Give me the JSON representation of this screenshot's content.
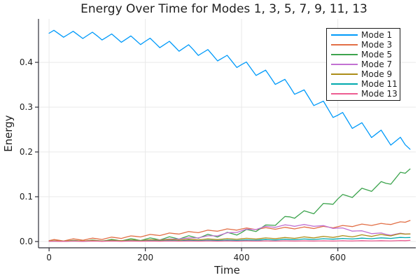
{
  "chart_data": {
    "type": "line",
    "title": "Energy Over Time for Modes 1, 3, 5, 7, 9, 11, 13",
    "xlabel": "Time",
    "ylabel": "Energy",
    "xlim": [
      -22,
      762
    ],
    "ylim": [
      -0.014,
      0.497
    ],
    "xticks": [
      0,
      200,
      400,
      600
    ],
    "yticks": [
      0.0,
      0.1,
      0.2,
      0.3,
      0.4
    ],
    "grid": true,
    "legend_position": "top-right-inside",
    "colors": {
      "grid": "#e9e9e9",
      "axis": "#2f2f38",
      "text": "#1f1f1f",
      "background": "#ffffff"
    },
    "x": [
      0,
      10,
      20,
      30,
      40,
      50,
      60,
      70,
      80,
      90,
      100,
      110,
      120,
      130,
      140,
      150,
      160,
      170,
      180,
      190,
      200,
      210,
      220,
      230,
      240,
      250,
      260,
      270,
      280,
      290,
      300,
      310,
      320,
      330,
      340,
      350,
      360,
      370,
      380,
      390,
      400,
      410,
      420,
      430,
      440,
      450,
      460,
      470,
      480,
      490,
      500,
      510,
      520,
      530,
      540,
      550,
      560,
      570,
      580,
      590,
      600,
      610,
      620,
      630,
      640,
      650,
      660,
      670,
      680,
      690,
      700,
      710,
      720,
      730,
      740,
      750
    ],
    "series": [
      {
        "name": "Mode 1",
        "color": "#009afa",
        "values": [
          0.465,
          0.4715,
          0.4638,
          0.456,
          0.4626,
          0.4694,
          0.4614,
          0.4532,
          0.4602,
          0.4673,
          0.459,
          0.4499,
          0.4566,
          0.4634,
          0.4542,
          0.4448,
          0.4518,
          0.459,
          0.4494,
          0.4397,
          0.447,
          0.4539,
          0.4434,
          0.4328,
          0.4398,
          0.447,
          0.436,
          0.4248,
          0.432,
          0.4393,
          0.428,
          0.4155,
          0.422,
          0.4286,
          0.416,
          0.4032,
          0.4094,
          0.4158,
          0.4022,
          0.3885,
          0.395,
          0.4007,
          0.3858,
          0.3708,
          0.3766,
          0.3826,
          0.3668,
          0.3508,
          0.3564,
          0.3621,
          0.346,
          0.3287,
          0.3336,
          0.3386,
          0.3212,
          0.3036,
          0.3084,
          0.3134,
          0.2952,
          0.2769,
          0.282,
          0.2881,
          0.2704,
          0.2526,
          0.2588,
          0.2652,
          0.2488,
          0.2322,
          0.2404,
          0.2487,
          0.232,
          0.2153,
          0.224,
          0.2328,
          0.216,
          0.206
        ]
      },
      {
        "name": "Mode 3",
        "color": "#e26f46",
        "values": [
          0.002,
          0.0044,
          0.0028,
          0.0012,
          0.0036,
          0.006,
          0.0044,
          0.0028,
          0.0052,
          0.0076,
          0.006,
          0.0046,
          0.0072,
          0.0098,
          0.0084,
          0.007,
          0.0098,
          0.0126,
          0.0114,
          0.0102,
          0.013,
          0.0158,
          0.0146,
          0.0134,
          0.0162,
          0.019,
          0.0178,
          0.0166,
          0.0194,
          0.0222,
          0.021,
          0.0198,
          0.0226,
          0.0254,
          0.0242,
          0.023,
          0.0256,
          0.0282,
          0.0268,
          0.0254,
          0.028,
          0.0302,
          0.0284,
          0.0266,
          0.0288,
          0.031,
          0.0292,
          0.0274,
          0.0296,
          0.0318,
          0.03,
          0.0282,
          0.0304,
          0.0326,
          0.0308,
          0.029,
          0.0314,
          0.0338,
          0.0322,
          0.0306,
          0.033,
          0.0358,
          0.0346,
          0.0334,
          0.0362,
          0.039,
          0.0374,
          0.0358,
          0.0382,
          0.0406,
          0.039,
          0.038,
          0.041,
          0.044,
          0.043,
          0.047
        ]
      },
      {
        "name": "Mode 5",
        "color": "#3da44e",
        "values": [
          0.001,
          0.0017,
          0.0012,
          0.0005,
          0.0014,
          0.0025,
          0.0016,
          0.0005,
          0.0018,
          0.0033,
          0.002,
          0.0007,
          0.0026,
          0.0047,
          0.0032,
          0.0015,
          0.0038,
          0.0063,
          0.0044,
          0.0023,
          0.005,
          0.0081,
          0.006,
          0.0037,
          0.007,
          0.0105,
          0.008,
          0.0053,
          0.009,
          0.0129,
          0.01,
          0.0072,
          0.0116,
          0.0162,
          0.0132,
          0.01,
          0.0152,
          0.0206,
          0.0176,
          0.0144,
          0.02,
          0.027,
          0.0248,
          0.0224,
          0.0296,
          0.037,
          0.0366,
          0.036,
          0.0458,
          0.0558,
          0.055,
          0.052,
          0.0602,
          0.0686,
          0.0654,
          0.062,
          0.0734,
          0.085,
          0.0842,
          0.0832,
          0.095,
          0.105,
          0.1018,
          0.0984,
          0.1086,
          0.119,
          0.1156,
          0.112,
          0.1228,
          0.1338,
          0.13,
          0.128,
          0.1412,
          0.1546,
          0.1524,
          0.162
        ]
      },
      {
        "name": "Mode 7",
        "color": "#c271d2",
        "values": [
          0.001,
          0.0015,
          0.0011,
          0.0006,
          0.0012,
          0.0017,
          0.0013,
          0.0008,
          0.0014,
          0.0019,
          0.0015,
          0.0011,
          0.0017,
          0.0023,
          0.0019,
          0.0015,
          0.0022,
          0.0029,
          0.0026,
          0.0023,
          0.003,
          0.004,
          0.0038,
          0.0036,
          0.0046,
          0.0057,
          0.0056,
          0.0055,
          0.0068,
          0.0082,
          0.008,
          0.0082,
          0.0104,
          0.0128,
          0.0128,
          0.0126,
          0.016,
          0.0196,
          0.02,
          0.0202,
          0.024,
          0.0276,
          0.0272,
          0.0268,
          0.0304,
          0.034,
          0.0328,
          0.0316,
          0.0344,
          0.0372,
          0.036,
          0.034,
          0.036,
          0.038,
          0.036,
          0.034,
          0.0348,
          0.0356,
          0.0324,
          0.0292,
          0.03,
          0.0304,
          0.0268,
          0.0232,
          0.0236,
          0.024,
          0.0208,
          0.0176,
          0.0184,
          0.0192,
          0.016,
          0.0142,
          0.0164,
          0.0186,
          0.0168,
          0.017
        ]
      },
      {
        "name": "Mode 9",
        "color": "#ac8d18",
        "values": [
          0.001,
          0.0016,
          0.0012,
          0.0008,
          0.0014,
          0.002,
          0.0016,
          0.0012,
          0.0018,
          0.0025,
          0.002,
          0.0015,
          0.0022,
          0.0029,
          0.0024,
          0.0019,
          0.0026,
          0.0034,
          0.0028,
          0.0022,
          0.003,
          0.0039,
          0.0033,
          0.0028,
          0.0036,
          0.0046,
          0.0039,
          0.0033,
          0.0042,
          0.0052,
          0.0045,
          0.0038,
          0.0048,
          0.0058,
          0.0051,
          0.0043,
          0.0054,
          0.0064,
          0.0057,
          0.0049,
          0.006,
          0.0072,
          0.0064,
          0.0056,
          0.0068,
          0.008,
          0.0072,
          0.0064,
          0.0076,
          0.009,
          0.008,
          0.0071,
          0.0086,
          0.0103,
          0.0092,
          0.0081,
          0.0098,
          0.0117,
          0.0104,
          0.0091,
          0.011,
          0.0132,
          0.0118,
          0.0104,
          0.0126,
          0.015,
          0.0132,
          0.0114,
          0.0136,
          0.0158,
          0.014,
          0.0126,
          0.0152,
          0.0178,
          0.0164,
          0.017
        ]
      },
      {
        "name": "Mode 11",
        "color": "#00a9ad",
        "values": [
          0.0005,
          0.0009,
          0.0006,
          0.0004,
          0.0007,
          0.0011,
          0.0008,
          0.0006,
          0.0009,
          0.0013,
          0.001,
          0.0008,
          0.0011,
          0.0016,
          0.0012,
          0.0009,
          0.0013,
          0.0018,
          0.0014,
          0.0011,
          0.0015,
          0.002,
          0.0017,
          0.0013,
          0.0018,
          0.0024,
          0.002,
          0.0015,
          0.0021,
          0.0027,
          0.0023,
          0.0018,
          0.0024,
          0.003,
          0.0026,
          0.0021,
          0.0027,
          0.0033,
          0.0029,
          0.0024,
          0.003,
          0.0038,
          0.0033,
          0.0029,
          0.0036,
          0.0044,
          0.0039,
          0.0035,
          0.0042,
          0.005,
          0.0045,
          0.0041,
          0.0048,
          0.0057,
          0.0051,
          0.0046,
          0.0054,
          0.0063,
          0.0057,
          0.0052,
          0.006,
          0.007,
          0.0063,
          0.0057,
          0.0066,
          0.0076,
          0.0069,
          0.0063,
          0.0072,
          0.0082,
          0.0075,
          0.007,
          0.0081,
          0.0092,
          0.0087,
          0.009
        ]
      },
      {
        "name": "Mode 13",
        "color": "#ed5d92",
        "values": [
          0.0005,
          0.0009,
          0.0006,
          0.0004,
          0.0007,
          0.001,
          0.0007,
          0.0005,
          0.0008,
          0.0011,
          0.0008,
          0.0006,
          0.0008,
          0.0011,
          0.0008,
          0.0006,
          0.0009,
          0.0012,
          0.0009,
          0.0007,
          0.0009,
          0.0012,
          0.0009,
          0.0007,
          0.001,
          0.0013,
          0.001,
          0.0008,
          0.001,
          0.0013,
          0.001,
          0.0008,
          0.0011,
          0.0014,
          0.0011,
          0.0009,
          0.0011,
          0.0014,
          0.0011,
          0.0009,
          0.0012,
          0.0015,
          0.0012,
          0.001,
          0.0012,
          0.0015,
          0.0012,
          0.001,
          0.0013,
          0.0016,
          0.0013,
          0.0011,
          0.0013,
          0.0016,
          0.0013,
          0.0011,
          0.0014,
          0.0017,
          0.0014,
          0.0012,
          0.0015,
          0.0018,
          0.0015,
          0.0013,
          0.0016,
          0.0019,
          0.0016,
          0.0014,
          0.0017,
          0.002,
          0.0017,
          0.0015,
          0.0018,
          0.0022,
          0.0019,
          0.0025
        ]
      }
    ]
  }
}
